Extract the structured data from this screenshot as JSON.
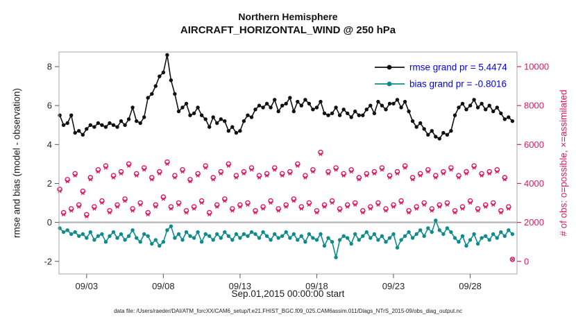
{
  "page": {
    "footer": "data file: /Users/raeder/DAI/ATM_forcXX/CAM6_setup/f.e21.FHIST_BGC.f09_025.CAM6assim.011/Diags_NTrS_2015-09/obs_diag_output.nc"
  },
  "colors": {
    "rmse": "#111111",
    "bias": "#0f8b8b",
    "obs": "#df1860",
    "legend_text": "#0000ee",
    "zero_line": "#bbbbbb",
    "axis_box": "#aaaaaa",
    "tick_label": "#262626"
  },
  "chart_data": {
    "type": "line",
    "title": [
      "Northern Hemisphere",
      "AIRCRAFT_HORIZONTAL_WIND @ 250 hPa"
    ],
    "xlabel": "Sep.01,2015 00:00:00 start",
    "ylabel_left": "rmse and bias (model - observation)",
    "ylabel_right": "# of obs: o=possible, ×=assimilated",
    "grid": false,
    "legend_position": "top-right-inside",
    "legend": [
      {
        "label": "rmse grand pr = 5.4474",
        "color": "#111111"
      },
      {
        "label": "bias grand pr = -0.8016",
        "color": "#0f8b8b"
      }
    ],
    "rmse_grand_pr": 5.4474,
    "bias_grand_pr": -0.8016,
    "x_lim_days": [
      1.2,
      31.05
    ],
    "x_start_day": 1.25,
    "x_step_days": 0.25,
    "x_ticks": {
      "days": [
        3,
        8,
        13,
        18,
        23,
        28
      ],
      "labels": [
        "09/03",
        "09/08",
        "09/13",
        "09/18",
        "09/23",
        "09/28"
      ]
    },
    "y_left": {
      "ticks": [
        -2,
        0,
        2,
        4,
        6,
        8
      ],
      "lim": [
        -2.65,
        8.75
      ]
    },
    "y_right": {
      "ticks": [
        0,
        2000,
        4000,
        6000,
        8000,
        10000
      ],
      "lim": [
        -650,
        10750
      ]
    },
    "zero_line": {
      "value": 0
    },
    "series": [
      {
        "name": "rmse",
        "axis": "left",
        "marker": "dot",
        "values": [
          5.5,
          5.0,
          5.1,
          5.5,
          4.6,
          4.7,
          4.5,
          4.8,
          5.0,
          4.9,
          5.1,
          5.0,
          4.9,
          5.1,
          5.0,
          4.9,
          5.2,
          5.0,
          5.3,
          5.9,
          5.2,
          5.1,
          5.4,
          6.4,
          6.6,
          7.0,
          7.5,
          7.7,
          8.6,
          7.3,
          6.6,
          5.7,
          5.9,
          6.1,
          5.5,
          5.6,
          5.9,
          5.5,
          5.3,
          4.9,
          5.4,
          5.1,
          5.3,
          5.2,
          4.7,
          4.9,
          4.6,
          4.7,
          5.2,
          5.5,
          5.4,
          5.8,
          6.0,
          5.9,
          6.1,
          5.9,
          6.3,
          5.7,
          6.0,
          6.1,
          6.4,
          5.7,
          6.2,
          6.0,
          6.3,
          6.1,
          5.8,
          5.9,
          6.2,
          5.6,
          5.5,
          5.6,
          5.9,
          5.5,
          5.8,
          5.6,
          5.4,
          5.7,
          5.5,
          5.5,
          5.8,
          6.0,
          5.6,
          6.2,
          6.0,
          5.8,
          6.1,
          6.1,
          6.3,
          5.9,
          6.2,
          5.7,
          5.2,
          4.9,
          5.1,
          4.8,
          4.5,
          4.7,
          4.4,
          4.3,
          4.6,
          4.5,
          4.7,
          5.5,
          5.9,
          6.1,
          5.8,
          6.0,
          6.3,
          5.9,
          6.1,
          5.8,
          6.0,
          5.7,
          5.9,
          5.6,
          5.3,
          5.4,
          5.2
        ]
      },
      {
        "name": "bias",
        "axis": "left",
        "marker": "dot",
        "values": [
          -0.3,
          -0.5,
          -0.4,
          -0.6,
          -0.5,
          -0.7,
          -0.6,
          -0.8,
          -0.5,
          -0.9,
          -0.7,
          -0.6,
          -1.0,
          -0.7,
          -0.5,
          -0.8,
          -0.6,
          -0.9,
          -0.7,
          -0.4,
          -0.8,
          -1.0,
          -0.6,
          -0.7,
          -1.1,
          -0.9,
          -1.2,
          -1.0,
          -0.4,
          -0.2,
          -0.8,
          -0.6,
          -0.9,
          -0.5,
          -0.7,
          -0.8,
          -0.5,
          -1.0,
          -0.6,
          -0.7,
          -0.9,
          -0.6,
          -0.8,
          -0.5,
          -0.7,
          -0.9,
          -0.6,
          -0.8,
          -0.6,
          -0.7,
          -0.5,
          -0.6,
          -0.8,
          -0.5,
          -0.7,
          -0.9,
          -0.6,
          -0.8,
          -0.7,
          -0.5,
          -0.8,
          -0.6,
          -0.9,
          -0.7,
          -1.0,
          -0.6,
          -0.8,
          -0.9,
          -0.6,
          -1.2,
          -0.8,
          -1.0,
          -1.8,
          -0.9,
          -0.7,
          -0.8,
          -1.1,
          -0.6,
          -0.9,
          -0.7,
          -0.5,
          -0.8,
          -0.6,
          -0.9,
          -0.7,
          -1.0,
          -0.8,
          -0.6,
          -1.3,
          -0.9,
          -0.7,
          -0.5,
          -0.8,
          -0.6,
          -0.4,
          -0.7,
          -0.3,
          -0.5,
          0.1,
          -0.4,
          -0.6,
          -0.3,
          -0.5,
          -0.8,
          -1.0,
          -0.7,
          -1.2,
          -0.9,
          -0.6,
          -1.1,
          -0.8,
          -0.7,
          -0.9,
          -0.6,
          -0.8,
          -0.5,
          -0.7,
          -0.4,
          -0.6
        ]
      },
      {
        "name": "n_possible",
        "axis": "right",
        "marker": "o",
        "values": [
          3700,
          2500,
          4200,
          2700,
          4500,
          2900,
          3600,
          2400,
          4300,
          2800,
          4700,
          3100,
          4900,
          2600,
          4400,
          2900,
          4600,
          3200,
          5000,
          2700,
          4500,
          3000,
          4800,
          2500,
          4300,
          2900,
          4600,
          3300,
          5100,
          2800,
          4400,
          3000,
          4700,
          2600,
          4200,
          2800,
          4500,
          3100,
          4900,
          2500,
          4300,
          2900,
          4600,
          3200,
          5000,
          2700,
          4400,
          2900,
          4600,
          3000,
          4800,
          2600,
          4400,
          2800,
          4500,
          3100,
          4800,
          2700,
          4500,
          2900,
          4600,
          3200,
          5000,
          2800,
          4400,
          3000,
          4700,
          2600,
          5600,
          2900,
          4600,
          3100,
          4800,
          2700,
          4500,
          2900,
          4700,
          3000,
          4300,
          2600,
          4500,
          2800,
          4600,
          3000,
          4800,
          2700,
          4400,
          2900,
          4600,
          3100,
          4900,
          2600,
          4300,
          2800,
          4500,
          3000,
          4700,
          2700,
          4400,
          2900,
          4600,
          3000,
          4800,
          2600,
          4400,
          2800,
          4600,
          3100,
          4900,
          2700,
          4500,
          2900,
          4600,
          3000,
          4700,
          2600,
          4300,
          2800,
          100
        ]
      },
      {
        "name": "n_assimilated",
        "axis": "right",
        "marker": "x",
        "values": [
          3600,
          2400,
          4100,
          2600,
          4400,
          2800,
          3500,
          2300,
          4200,
          2700,
          4600,
          3000,
          4800,
          2500,
          4300,
          2800,
          4500,
          3100,
          4900,
          2600,
          4400,
          2900,
          4700,
          2400,
          4200,
          2800,
          4500,
          3200,
          5000,
          2700,
          4300,
          2900,
          4600,
          2500,
          4100,
          2700,
          4400,
          3000,
          4800,
          2400,
          4200,
          2800,
          4500,
          3100,
          4900,
          2600,
          4300,
          2800,
          4500,
          2900,
          4700,
          2500,
          4300,
          2700,
          4400,
          3000,
          4700,
          2600,
          4400,
          2800,
          4500,
          3100,
          4900,
          2700,
          4300,
          2900,
          4600,
          2500,
          5500,
          2800,
          4500,
          3000,
          4700,
          2600,
          4400,
          2800,
          4600,
          2900,
          4200,
          2500,
          4400,
          2700,
          4500,
          2900,
          4700,
          2600,
          4300,
          2800,
          4500,
          3000,
          4800,
          2500,
          4200,
          2700,
          4400,
          2900,
          4600,
          2600,
          4300,
          2800,
          4500,
          2900,
          4700,
          2500,
          4300,
          2700,
          4500,
          3000,
          4800,
          2600,
          4400,
          2800,
          4500,
          2900,
          4600,
          2500,
          4200,
          2700,
          100
        ]
      }
    ]
  }
}
